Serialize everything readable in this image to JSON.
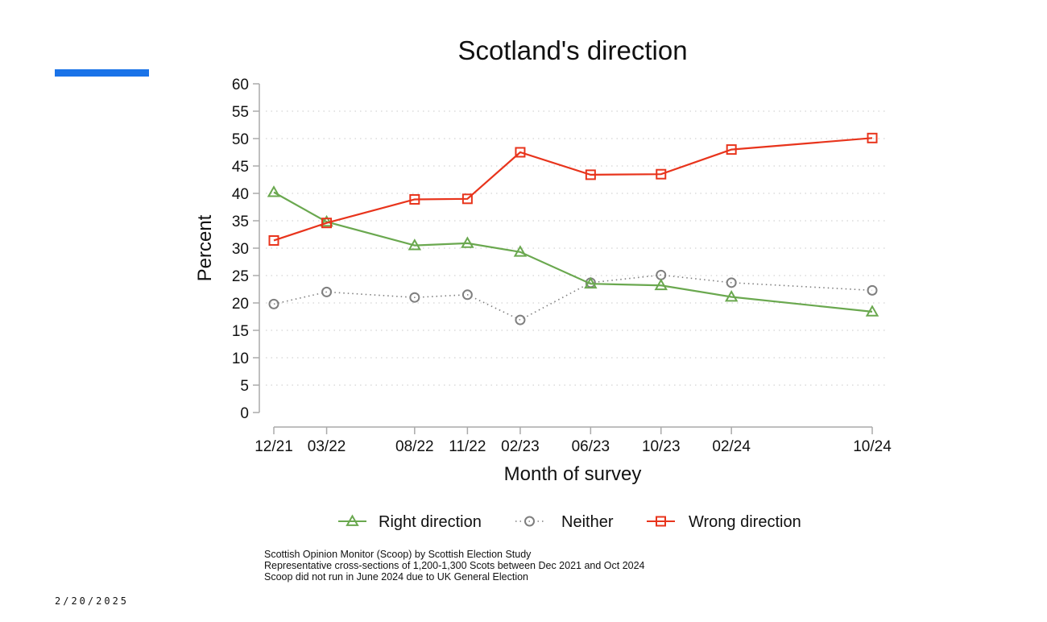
{
  "slide": {
    "accent_color": "#1a73e8",
    "date": "2/20/2025"
  },
  "chart_data": {
    "type": "line",
    "title": "Scotland's direction",
    "xlabel": "Month of survey",
    "ylabel": "Percent",
    "ylim": [
      0,
      60
    ],
    "yticks": [
      0,
      5,
      10,
      15,
      20,
      25,
      30,
      35,
      40,
      45,
      50,
      55,
      60
    ],
    "grid": "horizontal-dotted",
    "x_months_since_start": [
      0,
      3,
      8,
      11,
      14,
      18,
      22,
      26,
      34
    ],
    "categories": [
      "12/21",
      "03/22",
      "08/22",
      "11/22",
      "02/23",
      "06/23",
      "10/23",
      "02/24",
      "10/24"
    ],
    "series": [
      {
        "name": "Right direction",
        "color": "#6aa84f",
        "marker": "triangle",
        "line": "solid",
        "values": [
          40.2,
          34.8,
          30.5,
          30.9,
          29.3,
          23.5,
          23.2,
          21.1,
          18.4
        ]
      },
      {
        "name": "Neither",
        "color": "#7f7f7f",
        "marker": "circle",
        "line": "dotted",
        "values": [
          19.8,
          22.0,
          21.0,
          21.5,
          16.9,
          23.7,
          25.1,
          23.7,
          22.3
        ]
      },
      {
        "name": "Wrong direction",
        "color": "#e8341c",
        "marker": "square",
        "line": "solid",
        "values": [
          31.4,
          34.6,
          38.9,
          39.0,
          47.5,
          43.4,
          43.5,
          48.0,
          50.1
        ]
      }
    ],
    "legend_position": "bottom",
    "notes": [
      "Scottish Opinion Monitor (Scoop) by Scottish Election Study",
      "Representative cross-sections of 1,200-1,300 Scots between Dec 2021 and Oct 2024",
      "Scoop did not run in June 2024 due to UK General Election"
    ]
  }
}
